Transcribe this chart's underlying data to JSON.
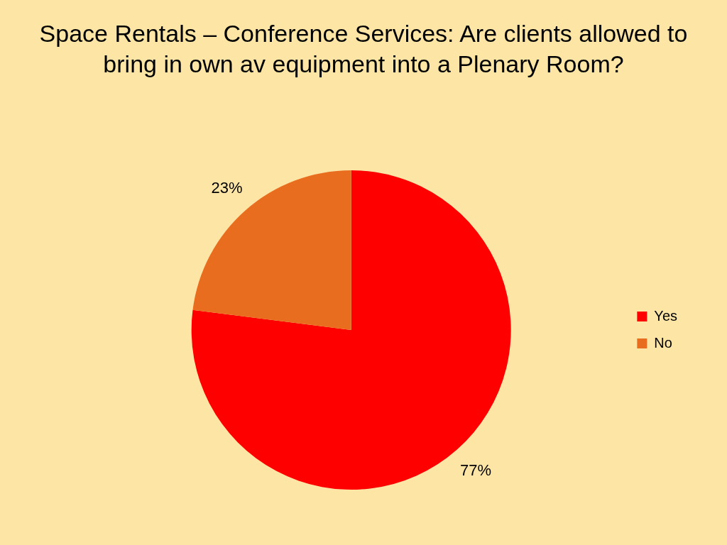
{
  "chart_data": {
    "type": "pie",
    "title": "Space Rentals – Conference Services:  Are clients allowed to bring in own av equipment into a Plenary Room?",
    "categories": [
      "Yes",
      "No"
    ],
    "values": [
      77,
      23
    ],
    "value_labels": [
      "77%",
      "23%"
    ],
    "colors": [
      "#ff0000",
      "#e96d1f"
    ],
    "legend": "right"
  }
}
